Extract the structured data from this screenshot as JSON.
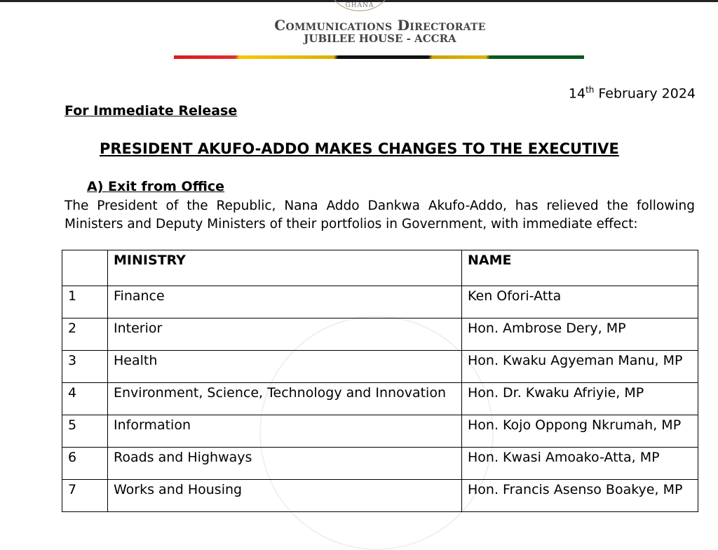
{
  "header": {
    "seal_text": "GHANA",
    "org": "Communications Directorate",
    "location": "JUBILEE HOUSE - ACCRA"
  },
  "date": {
    "day": "14",
    "suffix": "th",
    "rest": " February 2024"
  },
  "release": "For Immediate Release",
  "title": "PRESIDENT AKUFO-ADDO MAKES CHANGES TO THE EXECUTIVE",
  "section": {
    "label": "A) Exit from Office",
    "text": "The President of the Republic, Nana Addo Dankwa Akufo-Addo, has relieved the following Ministers and Deputy Ministers of their portfolios in Government, with immediate effect:"
  },
  "table": {
    "headers": [
      "",
      "MINISTRY",
      "NAME"
    ],
    "rows": [
      [
        "1",
        "Finance",
        "Ken Ofori-Atta"
      ],
      [
        "2",
        "Interior",
        "Hon. Ambrose Dery, MP"
      ],
      [
        "3",
        "Health",
        "Hon. Kwaku Agyeman Manu, MP"
      ],
      [
        "4",
        "Environment, Science, Technology and Innovation",
        "Hon. Dr. Kwaku Afriyie, MP"
      ],
      [
        "5",
        "Information",
        "Hon. Kojo Oppong Nkrumah, MP"
      ],
      [
        "6",
        "Roads and Highways",
        "Hon. Kwasi Amoako-Atta, MP"
      ],
      [
        "7",
        "Works and Housing",
        "Hon. Francis Asenso Boakye, MP"
      ]
    ]
  }
}
